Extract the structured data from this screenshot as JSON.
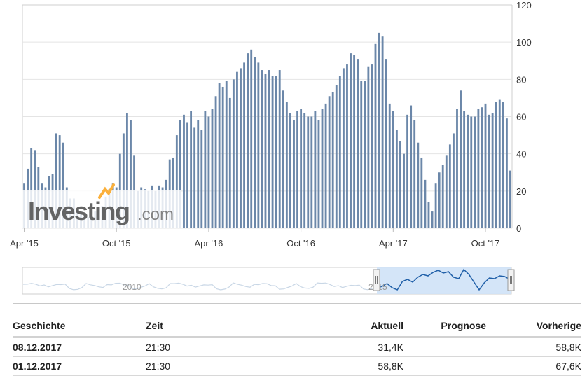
{
  "brand": {
    "logo_text": "Investing",
    "logo_suffix": ".com",
    "accent_color": "#fbb03b",
    "logo_gray": "#555555"
  },
  "colors": {
    "bar": "#6b87a9",
    "grid": "#e4e4e4",
    "navigator_line": "#1f5fa8",
    "navigator_fill": "#cfe2f7",
    "navigator_bg_line": "#c9d7e6"
  },
  "chart_data": {
    "type": "bar",
    "title": "",
    "xlabel": "",
    "ylabel": "",
    "ylim": [
      0,
      120
    ],
    "yticks": [
      0,
      20,
      40,
      60,
      80,
      100,
      120
    ],
    "y_axis_side": "right",
    "grid": true,
    "x_tick_labels": [
      "Apr '15",
      "Oct '15",
      "Apr '16",
      "Oct '16",
      "Apr '17",
      "Oct '17"
    ],
    "x_tick_index": [
      0,
      26,
      52,
      78,
      104,
      130
    ],
    "values": [
      24,
      32,
      43,
      42,
      33,
      24,
      22,
      28,
      29,
      51,
      50,
      46,
      22,
      16,
      16,
      10,
      8,
      7,
      6,
      5,
      9,
      10,
      12,
      17,
      21,
      24,
      22,
      40,
      51,
      62,
      58,
      39,
      20,
      22,
      21,
      20,
      23,
      20,
      23,
      22,
      26,
      37,
      38,
      50,
      58,
      61,
      57,
      63,
      54,
      58,
      53,
      63,
      60,
      64,
      71,
      78,
      76,
      79,
      70,
      80,
      84,
      86,
      89,
      94,
      96,
      92,
      89,
      85,
      83,
      85,
      82,
      82,
      85,
      74,
      68,
      62,
      58,
      63,
      64,
      62,
      60,
      60,
      63,
      58,
      64,
      67,
      71,
      73,
      77,
      82,
      86,
      88,
      94,
      93,
      91,
      79,
      79,
      87,
      88,
      99,
      105,
      103,
      91,
      67,
      63,
      53,
      47,
      40,
      61,
      66,
      58,
      46,
      38,
      26,
      14,
      9,
      24,
      30,
      34,
      39,
      45,
      51,
      64,
      74,
      63,
      61,
      60,
      60,
      64,
      65,
      67,
      61,
      62,
      68,
      69,
      68,
      59,
      31
    ],
    "navigator_labels": [
      "2010",
      "2015"
    ]
  },
  "table": {
    "headers": {
      "date": "Geschichte",
      "time": "Zeit",
      "actual": "Aktuell",
      "forecast": "Prognose",
      "previous": "Vorherige"
    },
    "rows": [
      {
        "date": "08.12.2017",
        "time": "21:30",
        "actual": "31,4K",
        "forecast": "",
        "previous": "58,8K"
      },
      {
        "date": "01.12.2017",
        "time": "21:30",
        "actual": "58,8K",
        "forecast": "",
        "previous": "67,6K"
      }
    ]
  }
}
